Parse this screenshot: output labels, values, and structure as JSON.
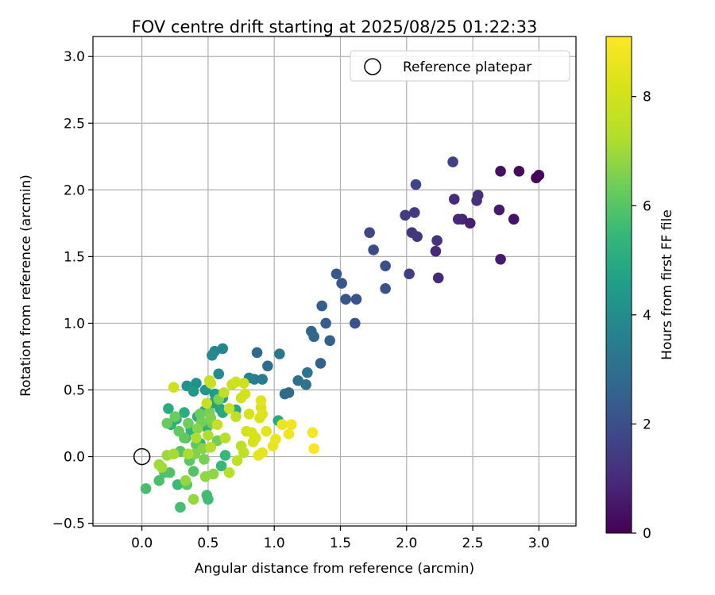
{
  "chart_data": {
    "type": "scatter",
    "title": "FOV centre drift starting at 2025/08/25 01:22:33",
    "xlabel": "Angular distance from reference (arcmin)",
    "ylabel": "Rotation from reference (arcmin)",
    "xlim": [
      -0.37,
      3.28
    ],
    "ylim": [
      -0.52,
      3.15
    ],
    "xticks": [
      "0.0",
      "0.5",
      "1.0",
      "1.5",
      "2.0",
      "2.5",
      "3.0"
    ],
    "xtick_values": [
      0,
      0.5,
      1.0,
      1.5,
      2.0,
      2.5,
      3.0
    ],
    "yticks": [
      "−0.5",
      "0.0",
      "0.5",
      "1.0",
      "1.5",
      "2.0",
      "2.5",
      "3.0"
    ],
    "ytick_values": [
      -0.5,
      0,
      0.5,
      1.0,
      1.5,
      2.0,
      2.5,
      3.0
    ],
    "grid": true,
    "legend": {
      "position": "top-right",
      "entries": [
        "Reference platepar"
      ]
    },
    "reference_point": {
      "x": 0,
      "y": 0,
      "marker": "open-circle"
    },
    "colorbar": {
      "label": "Hours from first FF file",
      "colormap": "viridis",
      "range": [
        0,
        9.1
      ],
      "ticks": [
        "0",
        "2",
        "4",
        "6",
        "8"
      ],
      "tick_values": [
        0,
        2,
        4,
        6,
        8
      ]
    },
    "series": [
      {
        "points": [
          [
            2.98,
            2.09,
            0.1
          ],
          [
            3.0,
            2.11,
            0.15
          ],
          [
            2.85,
            2.14,
            0.25
          ],
          [
            2.71,
            2.14,
            0.35
          ],
          [
            2.81,
            1.78,
            0.45
          ],
          [
            2.7,
            1.85,
            0.55
          ],
          [
            2.71,
            1.48,
            0.6
          ],
          [
            2.48,
            1.75,
            0.7
          ],
          [
            2.42,
            1.78,
            0.8
          ],
          [
            2.39,
            1.78,
            0.9
          ],
          [
            2.22,
            1.54,
            0.95
          ],
          [
            2.24,
            1.34,
            1.0
          ],
          [
            2.36,
            1.93,
            1.05
          ],
          [
            2.54,
            1.96,
            1.1
          ],
          [
            2.53,
            1.92,
            1.15
          ],
          [
            2.23,
            1.62,
            1.2
          ],
          [
            2.08,
            1.65,
            1.3
          ],
          [
            2.04,
            1.68,
            1.35
          ],
          [
            2.06,
            1.83,
            1.4
          ],
          [
            1.99,
            1.81,
            1.5
          ],
          [
            2.02,
            1.37,
            1.55
          ],
          [
            2.35,
            2.21,
            1.6
          ],
          [
            2.07,
            2.04,
            1.7
          ],
          [
            1.72,
            1.68,
            1.8
          ],
          [
            1.75,
            1.55,
            1.9
          ],
          [
            1.84,
            1.43,
            2.0
          ],
          [
            1.84,
            1.26,
            2.05
          ],
          [
            1.61,
            1.0,
            2.1
          ],
          [
            1.62,
            1.18,
            2.15
          ],
          [
            1.54,
            1.18,
            2.2
          ],
          [
            1.51,
            1.3,
            2.25
          ],
          [
            1.47,
            1.37,
            2.3
          ],
          [
            1.36,
            1.13,
            2.4
          ],
          [
            1.39,
            1.0,
            2.45
          ],
          [
            1.42,
            0.87,
            2.5
          ],
          [
            1.35,
            0.7,
            2.55
          ],
          [
            1.28,
            0.94,
            2.6
          ],
          [
            1.3,
            0.9,
            2.7
          ],
          [
            1.11,
            0.48,
            2.75
          ],
          [
            1.08,
            0.47,
            2.8
          ],
          [
            0.87,
            0.78,
            2.85
          ],
          [
            0.95,
            0.68,
            2.9
          ],
          [
            1.18,
            0.57,
            3.0
          ],
          [
            1.24,
            0.54,
            3.1
          ],
          [
            1.25,
            0.63,
            3.2
          ],
          [
            1.04,
            0.77,
            3.3
          ],
          [
            0.91,
            0.58,
            3.4
          ],
          [
            0.85,
            0.58,
            3.5
          ],
          [
            0.81,
            0.59,
            3.6
          ],
          [
            0.55,
            0.79,
            3.7
          ],
          [
            0.61,
            0.81,
            3.8
          ],
          [
            0.53,
            0.76,
            3.9
          ],
          [
            0.58,
            0.62,
            4.0
          ],
          [
            0.41,
            0.55,
            4.1
          ],
          [
            0.34,
            0.53,
            4.2
          ],
          [
            0.48,
            0.5,
            4.3
          ],
          [
            0.39,
            0.49,
            4.4
          ],
          [
            0.55,
            0.47,
            4.5
          ],
          [
            0.61,
            0.44,
            4.6
          ],
          [
            0.53,
            0.4,
            4.7
          ],
          [
            0.59,
            0.36,
            4.75
          ],
          [
            0.47,
            0.34,
            4.8
          ],
          [
            0.71,
            0.35,
            4.85
          ],
          [
            0.61,
            0.33,
            4.9
          ],
          [
            1.03,
            0.27,
            4.95
          ],
          [
            0.42,
            0.3,
            5.0
          ],
          [
            0.2,
            0.36,
            5.05
          ],
          [
            0.32,
            0.33,
            5.1
          ],
          [
            0.26,
            0.28,
            5.15
          ],
          [
            0.22,
            0.24,
            5.2
          ],
          [
            0.37,
            0.2,
            5.25
          ],
          [
            0.49,
            0.22,
            5.3
          ],
          [
            0.33,
            0.14,
            5.35
          ],
          [
            0.44,
            0.1,
            5.4
          ],
          [
            0.63,
            0.01,
            5.45
          ],
          [
            0.6,
            -0.07,
            5.5
          ],
          [
            0.27,
            -0.21,
            5.55
          ],
          [
            0.5,
            -0.32,
            5.6
          ],
          [
            0.49,
            -0.29,
            5.65
          ],
          [
            0.29,
            -0.38,
            5.7
          ],
          [
            0.03,
            -0.24,
            5.75
          ],
          [
            0.13,
            -0.18,
            5.8
          ],
          [
            0.17,
            -0.12,
            5.85
          ],
          [
            0.21,
            -0.12,
            5.9
          ],
          [
            0.39,
            -0.11,
            5.95
          ],
          [
            0.34,
            -0.21,
            6.0
          ],
          [
            0.29,
            0.04,
            6.0
          ],
          [
            0.36,
            -0.03,
            6.05
          ],
          [
            0.41,
            0.09,
            6.1
          ],
          [
            0.32,
            0.14,
            6.15
          ],
          [
            0.28,
            0.19,
            6.2
          ],
          [
            0.19,
            0.25,
            6.25
          ],
          [
            0.25,
            0.3,
            6.3
          ],
          [
            0.35,
            0.25,
            6.35
          ],
          [
            0.45,
            0.26,
            6.4
          ],
          [
            0.53,
            0.25,
            6.45
          ],
          [
            0.51,
            0.33,
            6.5
          ],
          [
            0.58,
            0.43,
            6.55
          ],
          [
            0.52,
            0.29,
            6.6
          ],
          [
            0.42,
            0.21,
            6.65
          ],
          [
            0.46,
            0.06,
            6.7
          ],
          [
            0.54,
            -0.13,
            6.75
          ],
          [
            0.48,
            -0.15,
            6.8
          ],
          [
            0.33,
            -0.18,
            6.85
          ],
          [
            0.39,
            -0.32,
            6.9
          ],
          [
            0.19,
            0.01,
            6.95
          ],
          [
            0.13,
            -0.06,
            7.0
          ],
          [
            0.15,
            -0.08,
            7.05
          ],
          [
            0.24,
            0.02,
            7.1
          ],
          [
            0.35,
            0.02,
            7.15
          ],
          [
            0.41,
            0.14,
            7.2
          ],
          [
            0.5,
            0.16,
            7.25
          ],
          [
            0.52,
            0.07,
            7.3
          ],
          [
            0.63,
            0.14,
            7.35
          ],
          [
            0.66,
            -0.12,
            7.4
          ],
          [
            0.72,
            -0.03,
            7.45
          ],
          [
            0.77,
            0.03,
            7.5
          ],
          [
            0.75,
            0.08,
            7.55
          ],
          [
            0.71,
            0.3,
            7.6
          ],
          [
            0.66,
            0.36,
            7.65
          ],
          [
            0.57,
            0.24,
            7.7
          ],
          [
            0.49,
            0.4,
            7.75
          ],
          [
            0.52,
            0.55,
            7.8
          ],
          [
            0.68,
            0.54,
            7.85
          ],
          [
            0.71,
            0.56,
            7.9
          ],
          [
            0.77,
            0.55,
            7.95
          ],
          [
            0.75,
            0.44,
            8.0
          ],
          [
            0.78,
            0.47,
            8.05
          ],
          [
            0.81,
            0.32,
            8.1
          ],
          [
            0.83,
            0.18,
            8.15
          ],
          [
            0.84,
            0.11,
            8.2
          ],
          [
            0.9,
            0.37,
            8.25
          ],
          [
            0.89,
            0.29,
            8.3
          ],
          [
            0.91,
            0.32,
            8.35
          ],
          [
            0.9,
            0.42,
            8.4
          ],
          [
            0.94,
            0.19,
            8.45
          ],
          [
            0.88,
            0.01,
            8.5
          ],
          [
            0.91,
            0.03,
            8.55
          ],
          [
            0.99,
            0.08,
            8.6
          ],
          [
            1.01,
            0.13,
            8.65
          ],
          [
            1.06,
            0.24,
            8.7
          ],
          [
            1.11,
            0.17,
            8.75
          ],
          [
            1.13,
            0.24,
            8.8
          ],
          [
            1.29,
            0.18,
            8.9
          ],
          [
            1.3,
            0.06,
            9.0
          ],
          [
            0.79,
            0.19,
            8.05
          ],
          [
            0.86,
            0.14,
            8.15
          ],
          [
            0.62,
            0.48,
            7.6
          ],
          [
            0.24,
            0.52,
            7.9
          ],
          [
            0.51,
            0.57,
            7.7
          ],
          [
            0.4,
            0.02,
            6.6
          ],
          [
            0.47,
            -0.02,
            6.5
          ],
          [
            0.57,
            0.12,
            6.4
          ],
          [
            0.44,
            0.32,
            6.3
          ]
        ]
      }
    ]
  }
}
